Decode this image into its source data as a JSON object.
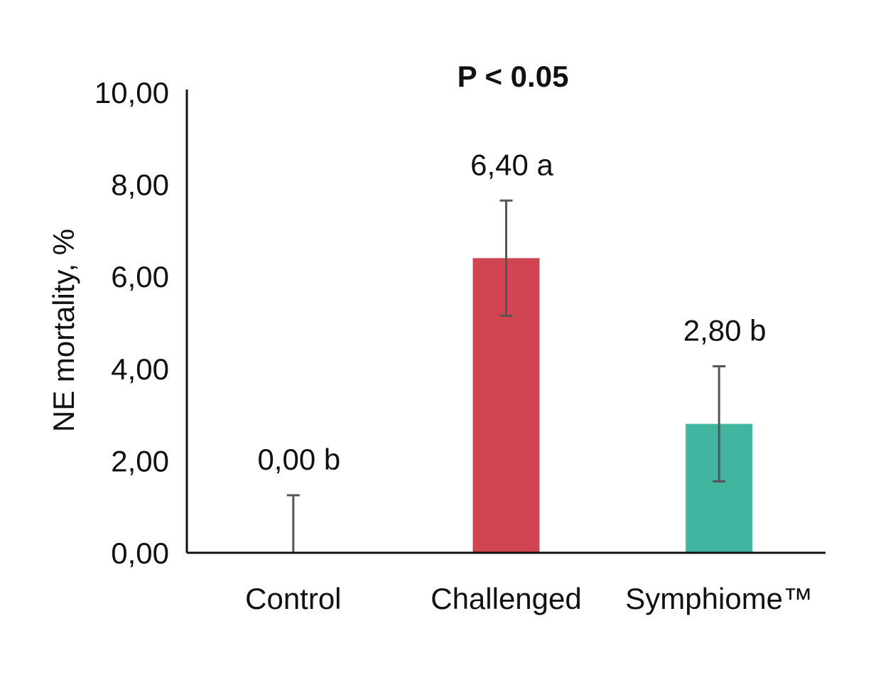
{
  "chart_data": {
    "type": "bar",
    "title": "P < 0.05",
    "xlabel": "",
    "ylabel": "NE mortality, %",
    "ylim": [
      0,
      10
    ],
    "yticks": [
      0,
      2,
      4,
      6,
      8,
      10
    ],
    "ytick_labels": [
      "0,00",
      "2,00",
      "4,00",
      "6,00",
      "8,00",
      "10,00"
    ],
    "categories": [
      "Control",
      "Challenged",
      "Symphiome™"
    ],
    "values": [
      0.0,
      6.4,
      2.8
    ],
    "error": [
      1.25,
      1.25,
      1.25
    ],
    "data_labels": [
      "0,00 b",
      "6,40 a",
      "2,80 b"
    ],
    "colors": [
      "#d14452",
      "#d14452",
      "#42b5a1"
    ],
    "error_bar_color": "#555555",
    "axis_color": "#111111",
    "grid": false,
    "legend": "none"
  }
}
